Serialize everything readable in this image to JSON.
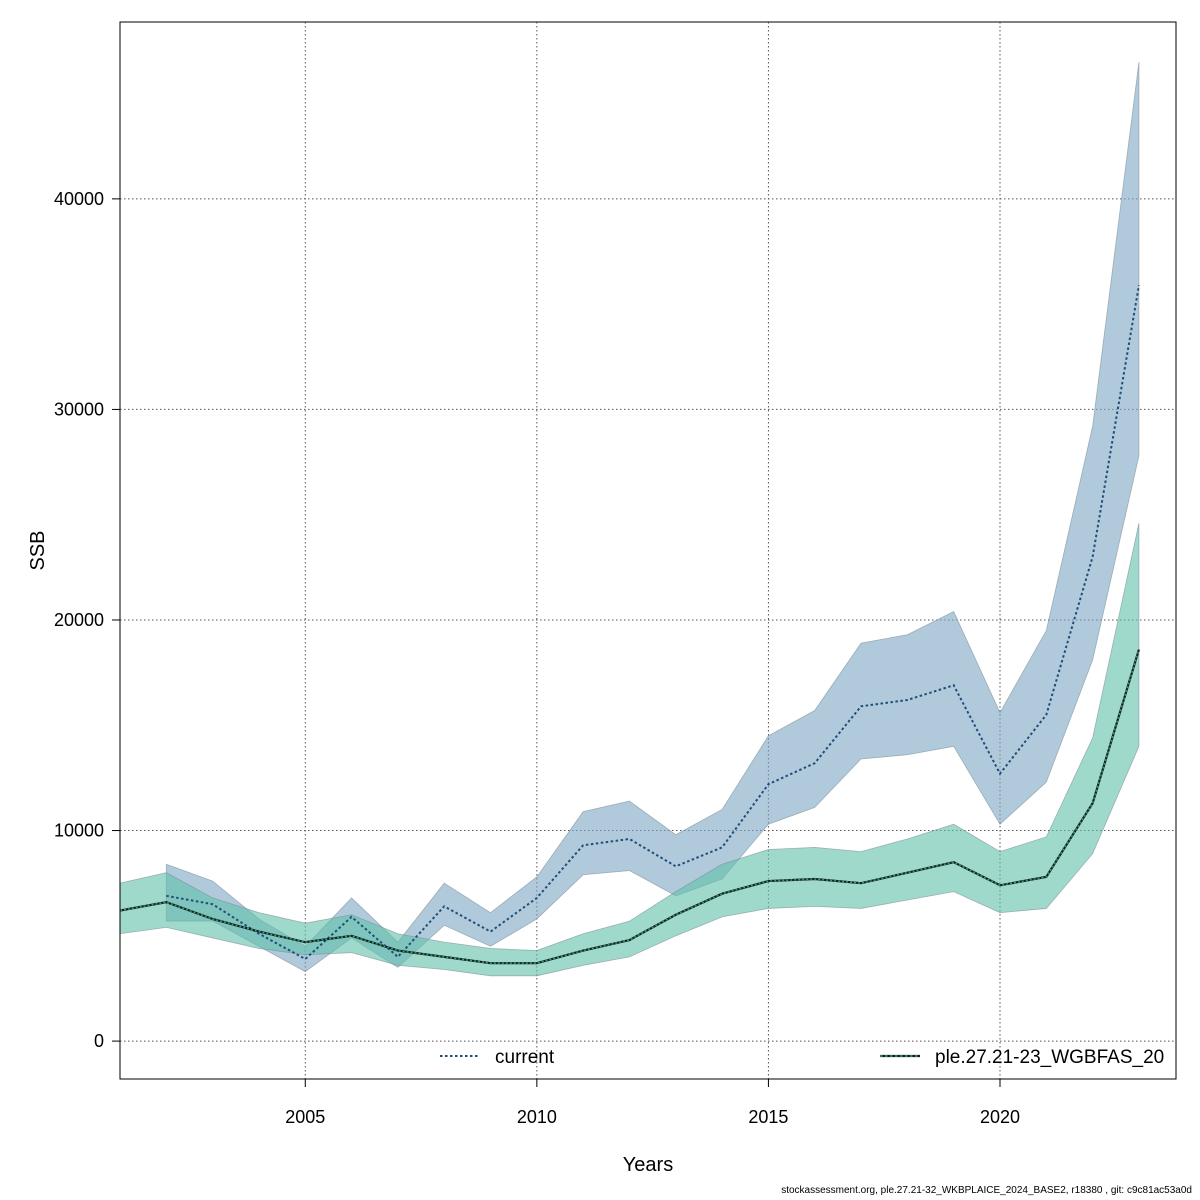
{
  "chart_data": {
    "type": "line",
    "xlabel": "Years",
    "ylabel": "SSB",
    "xlim": [
      2001,
      2023.8
    ],
    "ylim": [
      -1800,
      48400
    ],
    "xticks": [
      2005,
      2010,
      2015,
      2020
    ],
    "yticks": [
      0,
      10000,
      20000,
      30000,
      40000
    ],
    "grid": true,
    "legend_position": "bottom",
    "series": [
      {
        "name": "current",
        "line_style": "dotted",
        "line_color": "#1f4e79",
        "band_color": "#7ba7c4",
        "x": [
          2002,
          2003,
          2004,
          2005,
          2006,
          2007,
          2008,
          2009,
          2010,
          2011,
          2012,
          2013,
          2014,
          2015,
          2016,
          2017,
          2018,
          2019,
          2020,
          2021,
          2022,
          2023
        ],
        "y": [
          6900,
          6500,
          5100,
          3900,
          5900,
          4000,
          6400,
          5200,
          6800,
          9300,
          9600,
          8300,
          9200,
          12200,
          13200,
          15900,
          16200,
          16900,
          12700,
          15500,
          23000,
          35900
        ],
        "lower": [
          5700,
          5700,
          4500,
          3300,
          4900,
          3500,
          5500,
          4500,
          5800,
          7900,
          8100,
          6900,
          7700,
          10300,
          11100,
          13400,
          13600,
          14000,
          10300,
          12300,
          18100,
          27800
        ],
        "upper": [
          8400,
          7600,
          5800,
          4500,
          6800,
          4700,
          7500,
          6100,
          7800,
          10900,
          11400,
          9800,
          11000,
          14500,
          15700,
          18900,
          19300,
          20400,
          15600,
          19500,
          29200,
          46500
        ]
      },
      {
        "name": "ple.27.21-23_WGBFAS_20",
        "line_style": "dotted",
        "line_color": "#0b3a2e",
        "band_color": "#5fbfa8",
        "x": [
          2001,
          2002,
          2003,
          2004,
          2005,
          2006,
          2007,
          2008,
          2009,
          2010,
          2011,
          2012,
          2013,
          2014,
          2015,
          2016,
          2017,
          2018,
          2019,
          2020,
          2021,
          2022,
          2023
        ],
        "y": [
          6200,
          6600,
          5800,
          5200,
          4700,
          5000,
          4300,
          4000,
          3700,
          3700,
          4300,
          4800,
          6000,
          7000,
          7600,
          7700,
          7500,
          8000,
          8500,
          7400,
          7800,
          11300,
          18600
        ],
        "lower": [
          5100,
          5400,
          4900,
          4400,
          4100,
          4200,
          3600,
          3400,
          3100,
          3100,
          3600,
          4000,
          5000,
          5900,
          6300,
          6400,
          6300,
          6700,
          7100,
          6100,
          6300,
          8900,
          14000
        ],
        "upper": [
          7500,
          8000,
          6800,
          6100,
          5600,
          6000,
          5100,
          4700,
          4400,
          4300,
          5100,
          5700,
          7100,
          8400,
          9100,
          9200,
          9000,
          9600,
          10300,
          9000,
          9700,
          14400,
          24600
        ]
      }
    ]
  },
  "footer": {
    "note": "stockassessment.org, ple.27.21-32_WKBPLAICE_2024_BASE2, r18380 , git: c9c81ac53a0d"
  }
}
